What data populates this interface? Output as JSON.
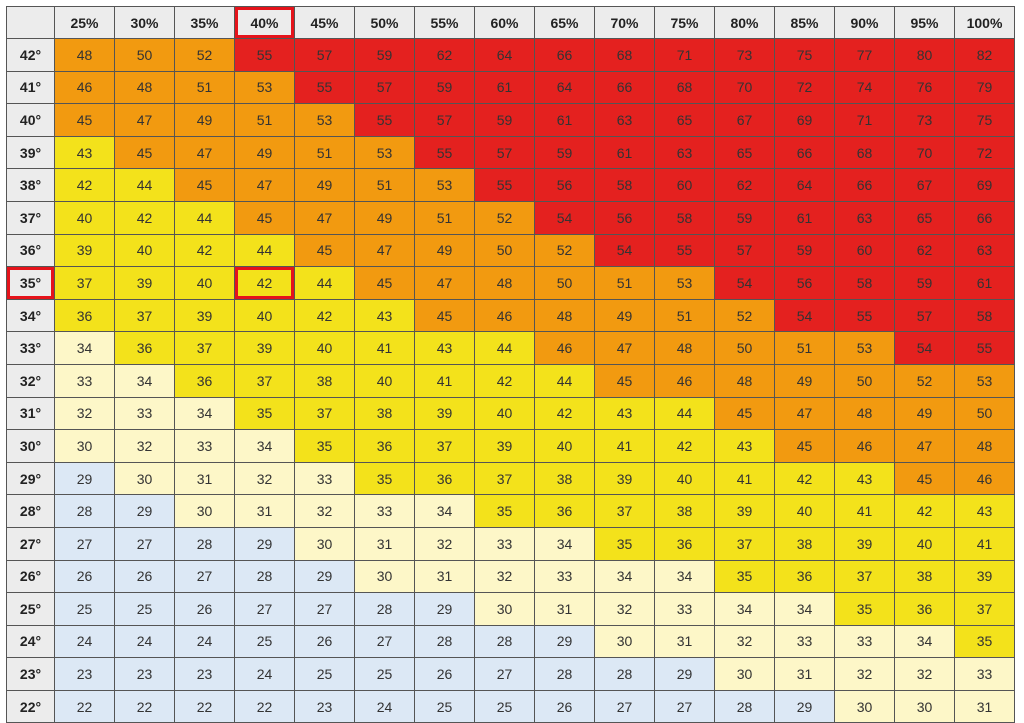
{
  "chart_data": {
    "type": "heatmap",
    "columns": [
      "25%",
      "30%",
      "35%",
      "40%",
      "45%",
      "50%",
      "55%",
      "60%",
      "65%",
      "70%",
      "75%",
      "80%",
      "85%",
      "90%",
      "95%",
      "100%"
    ],
    "rows": [
      "42°",
      "41°",
      "40°",
      "39°",
      "38°",
      "37°",
      "36°",
      "35°",
      "34°",
      "33°",
      "32°",
      "31°",
      "30°",
      "29°",
      "28°",
      "27°",
      "26°",
      "25°",
      "24°",
      "23°",
      "22°"
    ],
    "values": [
      [
        48,
        50,
        52,
        55,
        57,
        59,
        62,
        64,
        66,
        68,
        71,
        73,
        75,
        77,
        80,
        82
      ],
      [
        46,
        48,
        51,
        53,
        55,
        57,
        59,
        61,
        64,
        66,
        68,
        70,
        72,
        74,
        76,
        79
      ],
      [
        45,
        47,
        49,
        51,
        53,
        55,
        57,
        59,
        61,
        63,
        65,
        67,
        69,
        71,
        73,
        75
      ],
      [
        43,
        45,
        47,
        49,
        51,
        53,
        55,
        57,
        59,
        61,
        63,
        65,
        66,
        68,
        70,
        72
      ],
      [
        42,
        44,
        45,
        47,
        49,
        51,
        53,
        55,
        56,
        58,
        60,
        62,
        64,
        66,
        67,
        69
      ],
      [
        40,
        42,
        44,
        45,
        47,
        49,
        51,
        52,
        54,
        56,
        58,
        59,
        61,
        63,
        65,
        66
      ],
      [
        39,
        40,
        42,
        44,
        45,
        47,
        49,
        50,
        52,
        54,
        55,
        57,
        59,
        60,
        62,
        63
      ],
      [
        37,
        39,
        40,
        42,
        44,
        45,
        47,
        48,
        50,
        51,
        53,
        54,
        56,
        58,
        59,
        61
      ],
      [
        36,
        37,
        39,
        40,
        42,
        43,
        45,
        46,
        48,
        49,
        51,
        52,
        54,
        55,
        57,
        58
      ],
      [
        34,
        36,
        37,
        39,
        40,
        41,
        43,
        44,
        46,
        47,
        48,
        50,
        51,
        53,
        54,
        55
      ],
      [
        33,
        34,
        36,
        37,
        38,
        40,
        41,
        42,
        44,
        45,
        46,
        48,
        49,
        50,
        52,
        53
      ],
      [
        32,
        33,
        34,
        35,
        37,
        38,
        39,
        40,
        42,
        43,
        44,
        45,
        47,
        48,
        49,
        50
      ],
      [
        30,
        32,
        33,
        34,
        35,
        36,
        37,
        39,
        40,
        41,
        42,
        43,
        45,
        46,
        47,
        48
      ],
      [
        29,
        30,
        31,
        32,
        33,
        35,
        36,
        37,
        38,
        39,
        40,
        41,
        42,
        43,
        45,
        46
      ],
      [
        28,
        29,
        30,
        31,
        32,
        33,
        34,
        35,
        36,
        37,
        38,
        39,
        40,
        41,
        42,
        43
      ],
      [
        27,
        27,
        28,
        29,
        30,
        31,
        32,
        33,
        34,
        35,
        36,
        37,
        38,
        39,
        40,
        41
      ],
      [
        26,
        26,
        27,
        28,
        29,
        30,
        31,
        32,
        33,
        34,
        34,
        35,
        36,
        37,
        38,
        39
      ],
      [
        25,
        25,
        26,
        27,
        27,
        28,
        29,
        30,
        31,
        32,
        33,
        34,
        34,
        35,
        36,
        37
      ],
      [
        24,
        24,
        24,
        25,
        26,
        27,
        28,
        28,
        29,
        30,
        31,
        32,
        33,
        33,
        34,
        35
      ],
      [
        23,
        23,
        23,
        24,
        25,
        25,
        26,
        27,
        28,
        28,
        29,
        30,
        31,
        32,
        32,
        33
      ],
      [
        22,
        22,
        22,
        22,
        23,
        24,
        25,
        25,
        26,
        27,
        27,
        28,
        29,
        30,
        30,
        31
      ]
    ],
    "color_bands": [
      {
        "min": 0,
        "max": 29,
        "color": "#dce8f5"
      },
      {
        "min": 30,
        "max": 34,
        "color": "#fdf7c8"
      },
      {
        "min": 35,
        "max": 44,
        "color": "#f3e21b"
      },
      {
        "min": 45,
        "max": 53,
        "color": "#f29a10"
      },
      {
        "min": 54,
        "max": 99,
        "color": "#e4211f"
      }
    ],
    "highlighted": {
      "column": "40%",
      "row": "35°",
      "value": 42,
      "color": "#e5131b"
    }
  }
}
